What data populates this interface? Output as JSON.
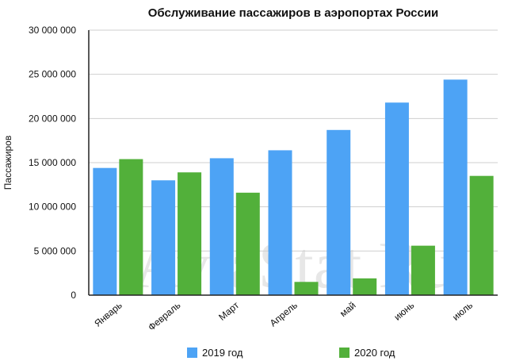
{
  "watermark": "AviaStat.Ru",
  "chart_data": {
    "type": "bar",
    "title": "Обслуживание пассажиров в аэропортах России",
    "ylabel": "Пассажиров",
    "xlabel": "",
    "ylim": [
      0,
      30000000
    ],
    "yticks": [
      0,
      5000000,
      10000000,
      15000000,
      20000000,
      25000000,
      30000000
    ],
    "ytick_labels": [
      "0",
      "5 000 000",
      "10 000 000",
      "15 000 000",
      "20 000 000",
      "25 000 000",
      "30 000 000"
    ],
    "grid": true,
    "legend_position": "bottom",
    "categories": [
      "Январь",
      "Февраль",
      "Март",
      "Апрель",
      "май",
      "июнь",
      "июль"
    ],
    "series": [
      {
        "name": "2019 год",
        "color": "#4da3f5",
        "values": [
          14400000,
          13000000,
          15500000,
          16400000,
          18700000,
          21800000,
          24400000
        ]
      },
      {
        "name": "2020 год",
        "color": "#52b03a",
        "values": [
          15400000,
          13900000,
          11600000,
          1500000,
          1900000,
          5600000,
          13500000
        ]
      }
    ]
  }
}
